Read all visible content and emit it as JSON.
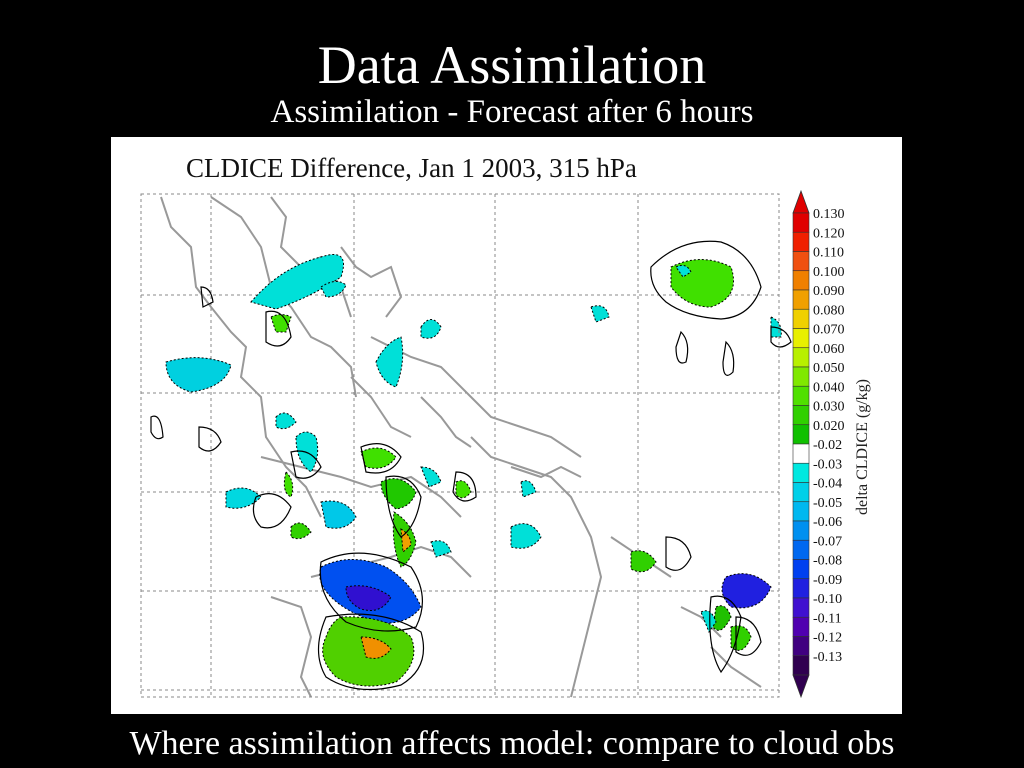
{
  "slide": {
    "title": "Data Assimilation",
    "subtitle": "Assimilation - Forecast after 6 hours",
    "caption": "Where assimilation affects model: compare to cloud obs"
  },
  "map": {
    "title": "CLDICE Difference, Jan 1 2003, 315 hPa",
    "colorbar_label": "delta CLDICE (g/kg)",
    "colorbar_levels": [
      "0.130",
      "0.120",
      "0.110",
      "0.100",
      "0.090",
      "0.080",
      "0.070",
      "0.060",
      "0.050",
      "0.040",
      "0.030",
      "0.020",
      "-0.02",
      "-0.03",
      "-0.04",
      "-0.05",
      "-0.06",
      "-0.07",
      "-0.08",
      "-0.09",
      "-0.10",
      "-0.11",
      "-0.12",
      "-0.13"
    ],
    "colorbar_colors": [
      "#e00000",
      "#f02000",
      "#f05010",
      "#f08000",
      "#f0a000",
      "#f0d000",
      "#e8f000",
      "#b8f000",
      "#80e800",
      "#50e000",
      "#30d000",
      "#10c000",
      "#ffffff",
      "#00e8e0",
      "#00d0e8",
      "#00b8f0",
      "#0090f0",
      "#0068f0",
      "#0040f0",
      "#2020e0",
      "#4010d0",
      "#5000b0",
      "#400080",
      "#300050"
    ],
    "colorbar_top_color": "#e00000",
    "colorbar_bottom_color": "#300050"
  }
}
